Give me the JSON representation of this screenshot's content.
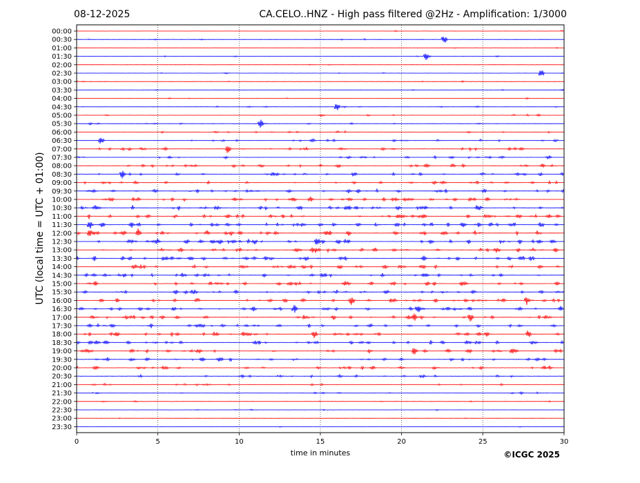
{
  "header": {
    "date": "08-12-2025",
    "title": "CA.CELO..HNZ - High pass filtered @2Hz - Amplification: 1/3000"
  },
  "footer": {
    "copyright": "©ICGC 2025"
  },
  "chart_data": {
    "type": "line",
    "title": "CA.CELO..HNZ - High pass filtered @2Hz - Amplification: 1/3000",
    "xlabel": "time in minutes",
    "ylabel": "UTC (local time = UTC + 01:00)",
    "xlim": [
      0,
      30
    ],
    "x_ticks": [
      0,
      5,
      10,
      15,
      20,
      25,
      30
    ],
    "y_tick_labels": [
      "00:00",
      "00:30",
      "01:00",
      "01:30",
      "02:00",
      "02:30",
      "03:00",
      "03:30",
      "04:00",
      "04:30",
      "05:00",
      "05:30",
      "06:00",
      "06:30",
      "07:00",
      "07:30",
      "08:00",
      "08:30",
      "09:00",
      "09:30",
      "10:00",
      "10:30",
      "11:00",
      "11:30",
      "12:00",
      "12:30",
      "13:00",
      "13:30",
      "14:00",
      "14:30",
      "15:00",
      "15:30",
      "16:00",
      "16:30",
      "17:00",
      "17:30",
      "18:00",
      "18:30",
      "19:00",
      "19:30",
      "20:00",
      "20:30",
      "21:00",
      "21:30",
      "22:00",
      "22:30",
      "23:00",
      "23:30"
    ],
    "trace_colors": [
      "#ff0000",
      "#0000ff"
    ],
    "vertical_gridlines": "dotted at 5-minute intervals",
    "activity_levels": [
      0.05,
      0.1,
      0.05,
      0.1,
      0.05,
      0.1,
      0.1,
      0.08,
      0.1,
      0.2,
      0.2,
      0.25,
      0.3,
      0.45,
      0.5,
      0.5,
      0.55,
      0.6,
      0.6,
      0.75,
      0.8,
      0.85,
      0.9,
      0.95,
      0.9,
      0.9,
      0.85,
      0.85,
      0.8,
      0.8,
      0.75,
      0.75,
      0.8,
      0.8,
      0.8,
      0.75,
      0.8,
      0.8,
      0.75,
      0.7,
      0.6,
      0.45,
      0.35,
      0.25,
      0.15,
      0.1,
      0.05,
      0.05
    ],
    "events": [
      {
        "trace": "00:30",
        "minute": 22.6
      },
      {
        "trace": "01:30",
        "minute": 21.5
      },
      {
        "trace": "02:30",
        "minute": 28.6
      },
      {
        "trace": "04:30",
        "minute": 16.0
      },
      {
        "trace": "05:30",
        "minute": 11.3
      },
      {
        "trace": "06:30",
        "minute": 1.5
      },
      {
        "trace": "07:00",
        "minute": 9.3
      },
      {
        "trace": "08:30",
        "minute": 2.8
      },
      {
        "trace": "11:30",
        "minute": 0.8
      },
      {
        "trace": "12:00",
        "minute": 0.8
      },
      {
        "trace": "12:00",
        "minute": 3.8
      },
      {
        "trace": "12:30",
        "minute": 14.8
      },
      {
        "trace": "16:00",
        "minute": 16.9
      },
      {
        "trace": "16:00",
        "minute": 27.7
      },
      {
        "trace": "16:30",
        "minute": 13.4
      },
      {
        "trace": "16:30",
        "minute": 21.0
      },
      {
        "trace": "17:00",
        "minute": 20.8
      },
      {
        "trace": "17:00",
        "minute": 24.2
      },
      {
        "trace": "18:00",
        "minute": 14.6
      },
      {
        "trace": "18:00",
        "minute": 27.8
      },
      {
        "trace": "19:00",
        "minute": 20.8
      },
      {
        "trace": "19:00",
        "minute": 26.8
      }
    ]
  }
}
